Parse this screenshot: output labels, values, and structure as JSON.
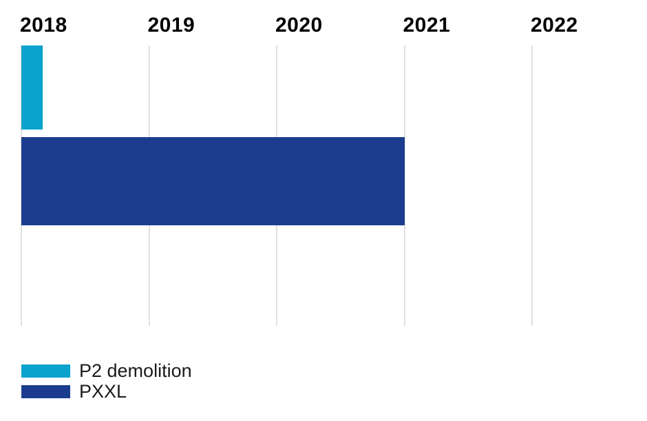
{
  "chart_data": {
    "type": "bar",
    "variant": "gantt-timeline",
    "title": "",
    "x_axis": {
      "ticks": [
        "2018",
        "2019",
        "2020",
        "2021",
        "2022"
      ],
      "range": [
        2018,
        2022.9
      ],
      "gridlines": true,
      "tick_label_position": "top"
    },
    "tasks": [
      {
        "name": "P2 demolition",
        "start": 2018.0,
        "end": 2018.167,
        "color": "#0aa2ce",
        "row": 0
      },
      {
        "name": "PXXL",
        "start": 2018.0,
        "end": 2021.0,
        "color": "#1c3d8e",
        "row": 1
      }
    ],
    "legend_position": "bottom-left",
    "grid_color": "#e0e0e0"
  },
  "legend": {
    "items": [
      {
        "label": "P2 demolition",
        "color": "#0aa2ce"
      },
      {
        "label": "PXXL",
        "color": "#1c3d8e"
      }
    ]
  },
  "colors": {
    "p2_demolition": "#0aa2ce",
    "pxxl": "#1c3d8e",
    "gridline": "#e0e0e0",
    "axis_label_text": "#000000",
    "legend_text": "#1a1a1a",
    "background": "#ffffff"
  }
}
